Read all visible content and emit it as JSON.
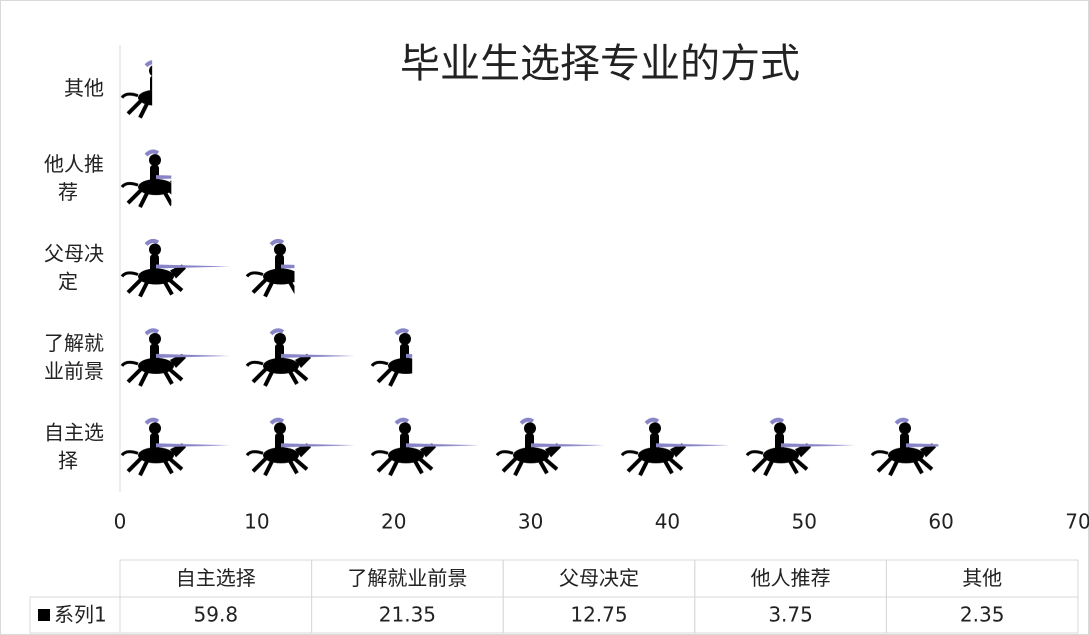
{
  "chart_data": {
    "type": "pictograph-bar",
    "title": "毕业生选择专业的方式",
    "categories": [
      "自主选择",
      "了解就业前景",
      "父母决定",
      "他人推荐",
      "其他"
    ],
    "series": [
      {
        "name": "系列1",
        "color": "#000000",
        "values": [
          59.8,
          21.35,
          12.75,
          3.75,
          2.35
        ]
      }
    ],
    "xlim": [
      0,
      70
    ],
    "xticks": [
      0,
      10,
      20,
      30,
      40,
      50,
      60,
      70
    ],
    "data_table": true
  }
}
